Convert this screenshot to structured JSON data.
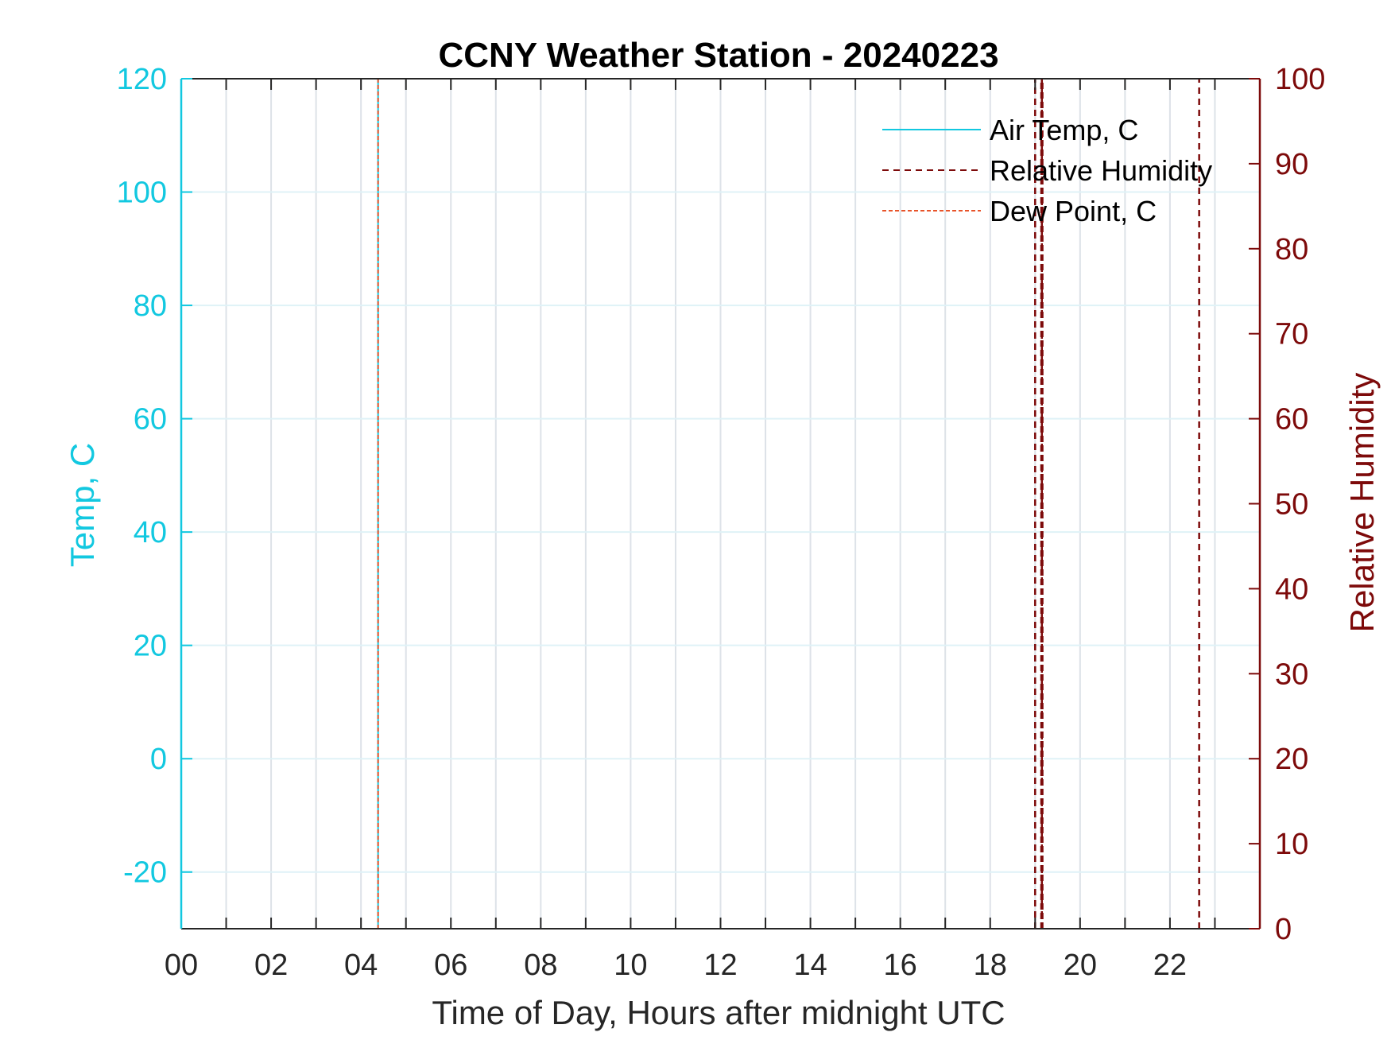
{
  "chart_data": {
    "type": "line",
    "title": "CCNY Weather Station - 20240223",
    "xlabel": "Time of Day, Hours after midnight UTC",
    "ylabel_left": "Temp, C",
    "ylabel_right": "Relative Humidity",
    "xlim": [
      0,
      24
    ],
    "ylim_left": [
      -30,
      120
    ],
    "ylim_right": [
      0,
      100
    ],
    "x_ticks": [
      0,
      2,
      4,
      6,
      8,
      10,
      12,
      14,
      16,
      18,
      20,
      22
    ],
    "x_tick_labels": [
      "00",
      "02",
      "04",
      "06",
      "08",
      "10",
      "12",
      "14",
      "16",
      "18",
      "20",
      "22"
    ],
    "y_left_ticks": [
      -20,
      0,
      20,
      40,
      60,
      80,
      100,
      120
    ],
    "y_right_ticks": [
      0,
      10,
      20,
      30,
      40,
      50,
      60,
      70,
      80,
      90,
      100
    ],
    "grid": true,
    "legend_position": "top-right",
    "series": [
      {
        "name": "Air Temp, C",
        "axis": "left",
        "style": "solid",
        "color": "#12c8e0",
        "x": [
          4.38,
          4.38
        ],
        "y": [
          -30,
          120
        ]
      },
      {
        "name": "Relative Humidity",
        "axis": "right",
        "style": "dashed",
        "color": "#7d0a0a",
        "x": [
          19.0,
          19.0,
          19.15,
          19.15,
          22.65,
          22.65
        ],
        "y": [
          0,
          100,
          0,
          100,
          0,
          100
        ]
      },
      {
        "name": "Dew Point, C",
        "axis": "left",
        "style": "dashed",
        "color": "#e8542a",
        "x": [
          4.38,
          4.38
        ],
        "y": [
          -30,
          120
        ]
      }
    ]
  }
}
